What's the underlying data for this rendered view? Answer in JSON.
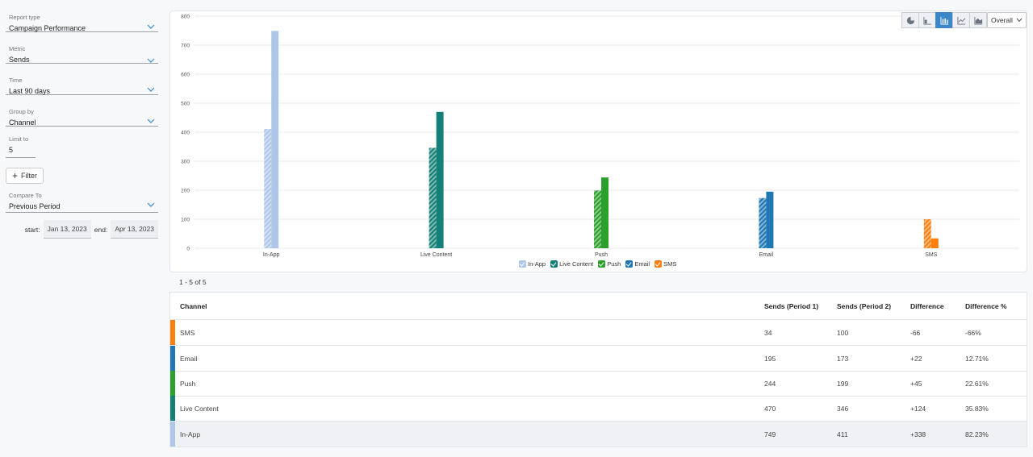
{
  "filters": {
    "report_type": {
      "label": "Report type",
      "value": "Campaign Performance"
    },
    "metric": {
      "label": "Metric",
      "value": "Sends"
    },
    "time": {
      "label": "Time",
      "value": "Last 90 days"
    },
    "group_by": {
      "label": "Group by",
      "value": "Channel"
    },
    "limit": {
      "label": "Limit to",
      "value": "5"
    },
    "filter_button": "Filter",
    "compare_to": {
      "label": "Compare To",
      "value": "Previous Period"
    },
    "start_label": "start:",
    "start_date": "Jan 13, 2023",
    "end_label": "end:",
    "end_date": "Apr 13, 2023"
  },
  "toolbar": {
    "buttons": [
      "pie-chart-icon",
      "horizontal-bar-icon",
      "bar-chart-icon",
      "line-chart-icon",
      "area-chart-icon"
    ],
    "active": "bar-chart-icon",
    "scope": "Overall"
  },
  "colors": {
    "in_app": "#aec7e8",
    "live_content": "#148078",
    "push": "#2ca02c",
    "email": "#1f77b4",
    "sms": "#ff7f0e"
  },
  "chart_data": {
    "type": "bar",
    "categories": [
      "In-App",
      "Live Content",
      "Push",
      "Email",
      "SMS"
    ],
    "series": [
      {
        "name": "Period 2 (hatched)",
        "values": [
          411,
          346,
          199,
          173,
          100
        ]
      },
      {
        "name": "Period 1",
        "values": [
          749,
          470,
          244,
          195,
          34
        ]
      }
    ],
    "ylim": [
      0,
      800
    ],
    "yticks": [
      0,
      100,
      200,
      300,
      400,
      500,
      600,
      700,
      800
    ],
    "legend": [
      "In-App",
      "Live Content",
      "Push",
      "Email",
      "SMS"
    ],
    "legend_position": "bottom",
    "grid": true
  },
  "table": {
    "count_text": "1 - 5 of 5",
    "headers": [
      "Channel",
      "Sends (Period 1)",
      "Sends (Period 2)",
      "Difference",
      "Difference %"
    ],
    "rows": [
      {
        "channel": "SMS",
        "p1": "34",
        "p2": "100",
        "diff": "-66",
        "pct": "-66%",
        "color": "#ff7f0e"
      },
      {
        "channel": "Email",
        "p1": "195",
        "p2": "173",
        "diff": "+22",
        "pct": "12.71%",
        "color": "#1f77b4"
      },
      {
        "channel": "Push",
        "p1": "244",
        "p2": "199",
        "diff": "+45",
        "pct": "22.61%",
        "color": "#2ca02c"
      },
      {
        "channel": "Live Content",
        "p1": "470",
        "p2": "346",
        "diff": "+124",
        "pct": "35.83%",
        "color": "#148078"
      },
      {
        "channel": "In-App",
        "p1": "749",
        "p2": "411",
        "diff": "+338",
        "pct": "82.23%",
        "color": "#aec7e8"
      }
    ]
  }
}
